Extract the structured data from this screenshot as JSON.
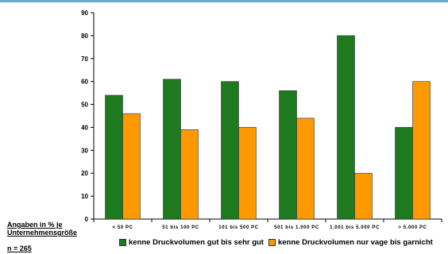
{
  "notes": {
    "basis_line1": "Angaben in % je",
    "basis_line2": "Unternehmensgröße",
    "sample": "n = 265"
  },
  "colors": {
    "series1": "#1e7a1e",
    "series2": "#ff9900",
    "top_border": "#6fa8cf"
  },
  "chart_data": {
    "type": "bar",
    "title": "",
    "xlabel": "",
    "ylabel": "",
    "categories": [
      "< 50 PC",
      "51 bis 100 PC",
      "101 bis 500 PC",
      "501 bis 1.000 PC",
      "1.001 bis 5.000 PC",
      "> 5.000 PC"
    ],
    "series": [
      {
        "name": "kenne Druckvolumen gut bis sehr gut",
        "values": [
          54,
          61,
          60,
          56,
          80,
          40
        ]
      },
      {
        "name": "kenne Druckvolumen nur vage bis garnicht",
        "values": [
          46,
          39,
          40,
          44,
          20,
          60
        ]
      }
    ],
    "ylim": [
      0,
      90
    ],
    "yticks": [
      0,
      10,
      20,
      30,
      40,
      50,
      60,
      70,
      80,
      90
    ],
    "grid": false,
    "legend": "bottom"
  }
}
